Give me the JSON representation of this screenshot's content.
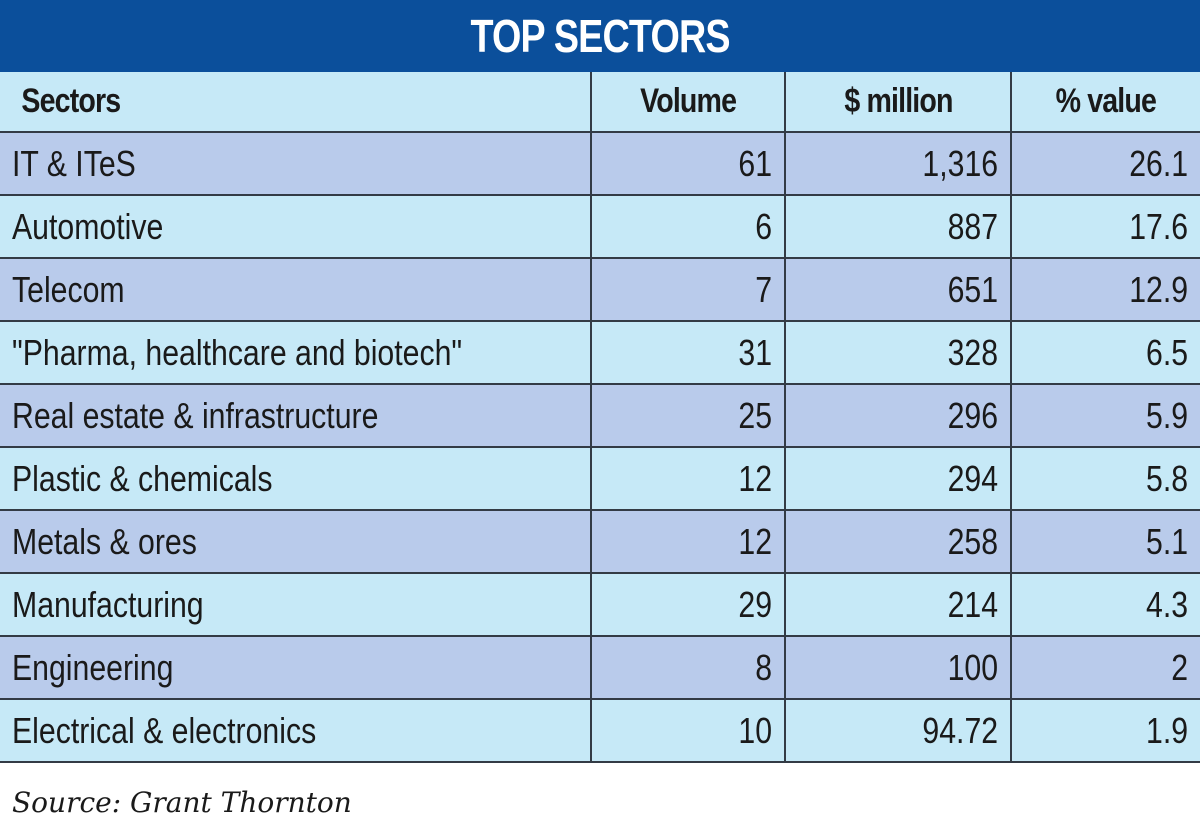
{
  "title": "TOP SECTORS",
  "columns": [
    "Sectors",
    "Volume",
    "$ million",
    "% value"
  ],
  "rows": [
    {
      "sector": "IT & ITeS",
      "volume": "61",
      "million": "1,316",
      "pct": "26.1"
    },
    {
      "sector": "Automotive",
      "volume": "6",
      "million": "887",
      "pct": "17.6"
    },
    {
      "sector": "Telecom",
      "volume": "7",
      "million": "651",
      "pct": "12.9"
    },
    {
      "sector": "\"Pharma, healthcare and biotech\"",
      "volume": "31",
      "million": "328",
      "pct": "6.5"
    },
    {
      "sector": "Real estate & infrastructure",
      "volume": "25",
      "million": "296",
      "pct": "5.9"
    },
    {
      "sector": "Plastic & chemicals",
      "volume": "12",
      "million": "294",
      "pct": "5.8"
    },
    {
      "sector": "Metals & ores",
      "volume": "12",
      "million": "258",
      "pct": "5.1"
    },
    {
      "sector": "Manufacturing",
      "volume": "29",
      "million": "214",
      "pct": "4.3"
    },
    {
      "sector": "Engineering",
      "volume": "8",
      "million": "100",
      "pct": "2"
    },
    {
      "sector": "Electrical & electronics",
      "volume": "10",
      "million": "94.72",
      "pct": "1.9"
    }
  ],
  "source": "Source: Grant Thornton",
  "colors": {
    "banner": "#0b4f9b",
    "row_odd": "#b9cbeb",
    "row_even": "#c6e9f7"
  }
}
